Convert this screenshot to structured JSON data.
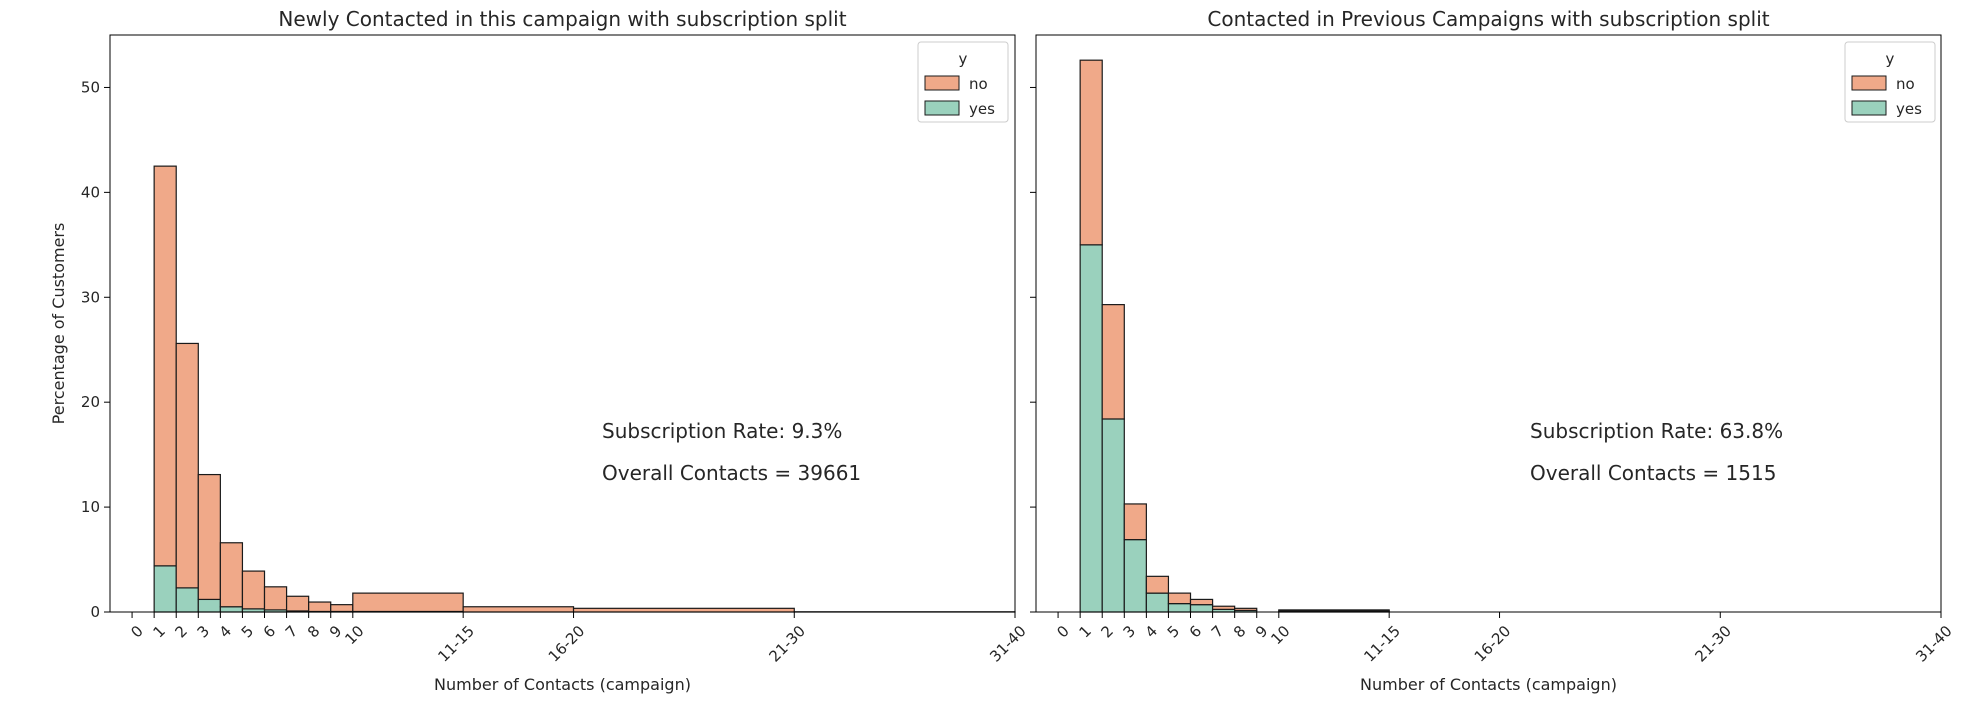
{
  "colors": {
    "no": "#f0a989",
    "yes": "#9ad1bd",
    "edge": "#1a1a1a"
  },
  "chart_data": [
    {
      "type": "bar",
      "stacked": true,
      "title": "Newly Contacted in this campaign with subscription split",
      "xlabel": "Number of Contacts (campaign)",
      "ylabel": "Percentage of Customers",
      "xlim": [
        -1,
        40
      ],
      "ylim": [
        0,
        55
      ],
      "yticks": [
        0,
        10,
        20,
        30,
        40,
        50
      ],
      "xticks": [
        {
          "value": 0,
          "label": "0"
        },
        {
          "value": 1,
          "label": "1"
        },
        {
          "value": 2,
          "label": "2"
        },
        {
          "value": 3,
          "label": "3"
        },
        {
          "value": 4,
          "label": "4"
        },
        {
          "value": 5,
          "label": "5"
        },
        {
          "value": 6,
          "label": "6"
        },
        {
          "value": 7,
          "label": "7"
        },
        {
          "value": 8,
          "label": "8"
        },
        {
          "value": 9,
          "label": "9"
        },
        {
          "value": 10,
          "label": "10"
        },
        {
          "value": 15,
          "label": "11-15"
        },
        {
          "value": 20,
          "label": "16-20"
        },
        {
          "value": 30,
          "label": "21-30"
        },
        {
          "value": 40,
          "label": "31-40"
        }
      ],
      "bins": [
        {
          "x0": 0,
          "x1": 1,
          "no": 0,
          "yes": 0
        },
        {
          "x0": 1,
          "x1": 2,
          "no": 38.1,
          "yes": 4.4
        },
        {
          "x0": 2,
          "x1": 3,
          "no": 23.3,
          "yes": 2.3
        },
        {
          "x0": 3,
          "x1": 4,
          "no": 11.9,
          "yes": 1.2
        },
        {
          "x0": 4,
          "x1": 5,
          "no": 6.1,
          "yes": 0.5
        },
        {
          "x0": 5,
          "x1": 6,
          "no": 3.6,
          "yes": 0.3
        },
        {
          "x0": 6,
          "x1": 7,
          "no": 2.2,
          "yes": 0.2
        },
        {
          "x0": 7,
          "x1": 8,
          "no": 1.4,
          "yes": 0.1
        },
        {
          "x0": 8,
          "x1": 9,
          "no": 0.9,
          "yes": 0.05
        },
        {
          "x0": 9,
          "x1": 10,
          "no": 0.65,
          "yes": 0.05
        },
        {
          "x0": 10,
          "x1": 15,
          "no": 1.75,
          "yes": 0.05
        },
        {
          "x0": 15,
          "x1": 20,
          "no": 0.5,
          "yes": 0
        },
        {
          "x0": 20,
          "x1": 30,
          "no": 0.35,
          "yes": 0
        },
        {
          "x0": 30,
          "x1": 40,
          "no": 0.02,
          "yes": 0
        }
      ],
      "legend": {
        "title": "y",
        "entries": [
          "no",
          "yes"
        ],
        "placement": "top-right"
      },
      "annotations": [
        "Subscription Rate: 9.3%",
        "Overall Contacts = 39661"
      ]
    },
    {
      "type": "bar",
      "stacked": true,
      "title": "Contacted in Previous Campaigns with subscription split",
      "xlabel": "Number of Contacts (campaign)",
      "ylabel": "",
      "xlim": [
        -1,
        40
      ],
      "ylim": [
        0,
        55
      ],
      "yticks": [
        0,
        10,
        20,
        30,
        40,
        50
      ],
      "xticks": [
        {
          "value": 0,
          "label": "0"
        },
        {
          "value": 1,
          "label": "1"
        },
        {
          "value": 2,
          "label": "2"
        },
        {
          "value": 3,
          "label": "3"
        },
        {
          "value": 4,
          "label": "4"
        },
        {
          "value": 5,
          "label": "5"
        },
        {
          "value": 6,
          "label": "6"
        },
        {
          "value": 7,
          "label": "7"
        },
        {
          "value": 8,
          "label": "8"
        },
        {
          "value": 9,
          "label": "9"
        },
        {
          "value": 10,
          "label": "10"
        },
        {
          "value": 15,
          "label": "11-15"
        },
        {
          "value": 20,
          "label": "16-20"
        },
        {
          "value": 30,
          "label": "21-30"
        },
        {
          "value": 40,
          "label": "31-40"
        }
      ],
      "bins": [
        {
          "x0": 0,
          "x1": 1,
          "no": 0,
          "yes": 0
        },
        {
          "x0": 1,
          "x1": 2,
          "no": 17.6,
          "yes": 35.0
        },
        {
          "x0": 2,
          "x1": 3,
          "no": 10.9,
          "yes": 18.4
        },
        {
          "x0": 3,
          "x1": 4,
          "no": 3.4,
          "yes": 6.9
        },
        {
          "x0": 4,
          "x1": 5,
          "no": 1.6,
          "yes": 1.8
        },
        {
          "x0": 5,
          "x1": 6,
          "no": 1.0,
          "yes": 0.8
        },
        {
          "x0": 6,
          "x1": 7,
          "no": 0.5,
          "yes": 0.7
        },
        {
          "x0": 7,
          "x1": 8,
          "no": 0.3,
          "yes": 0.25
        },
        {
          "x0": 8,
          "x1": 9,
          "no": 0.2,
          "yes": 0.15
        },
        {
          "x0": 9,
          "x1": 10,
          "no": 0,
          "yes": 0
        },
        {
          "x0": 10,
          "x1": 15,
          "no": 0.1,
          "yes": 0.1
        },
        {
          "x0": 15,
          "x1": 20,
          "no": 0,
          "yes": 0
        },
        {
          "x0": 20,
          "x1": 30,
          "no": 0,
          "yes": 0
        },
        {
          "x0": 30,
          "x1": 40,
          "no": 0,
          "yes": 0
        }
      ],
      "legend": {
        "title": "y",
        "entries": [
          "no",
          "yes"
        ],
        "placement": "top-right"
      },
      "annotations": [
        "Subscription Rate: 63.8%",
        "Overall Contacts = 1515"
      ]
    }
  ]
}
